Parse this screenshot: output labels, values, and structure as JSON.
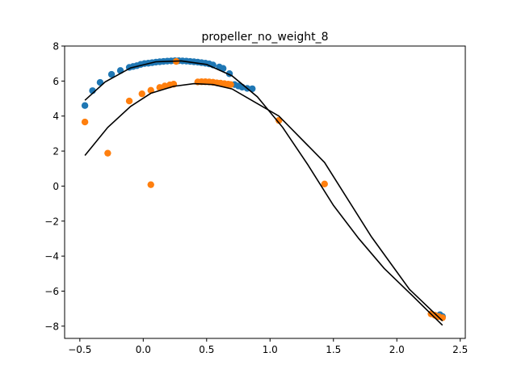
{
  "chart_data": {
    "type": "scatter",
    "title": "propeller_no_weight_8",
    "xlabel": "",
    "ylabel": "",
    "xlim": [
      -0.62,
      2.54
    ],
    "ylim": [
      -8.7,
      8.0
    ],
    "xticks": [
      -0.5,
      0.0,
      0.5,
      1.0,
      1.5,
      2.0,
      2.5
    ],
    "xtick_labels": [
      "−0.5",
      "0.0",
      "0.5",
      "1.0",
      "1.5",
      "2.0",
      "2.5"
    ],
    "yticks": [
      -8,
      -6,
      -4,
      -2,
      0,
      2,
      4,
      6,
      8
    ],
    "ytick_labels": [
      "−8",
      "−6",
      "−4",
      "−2",
      "0",
      "2",
      "4",
      "6",
      "8"
    ],
    "grid": false,
    "series": [
      {
        "color": "#1f77b4",
        "kind": "scatter",
        "points": [
          [
            -0.46,
            4.6
          ],
          [
            -0.4,
            5.45
          ],
          [
            -0.34,
            5.92
          ],
          [
            -0.25,
            6.38
          ],
          [
            -0.18,
            6.6
          ],
          [
            -0.11,
            6.78
          ],
          [
            -0.08,
            6.83
          ],
          [
            -0.05,
            6.88
          ],
          [
            -0.02,
            6.95
          ],
          [
            0.01,
            7.0
          ],
          [
            0.04,
            7.02
          ],
          [
            0.07,
            7.05
          ],
          [
            0.1,
            7.08
          ],
          [
            0.13,
            7.1
          ],
          [
            0.16,
            7.12
          ],
          [
            0.19,
            7.14
          ],
          [
            0.22,
            7.15
          ],
          [
            0.25,
            7.16
          ],
          [
            0.28,
            7.16
          ],
          [
            0.31,
            7.15
          ],
          [
            0.34,
            7.14
          ],
          [
            0.37,
            7.12
          ],
          [
            0.4,
            7.1
          ],
          [
            0.43,
            7.08
          ],
          [
            0.46,
            7.05
          ],
          [
            0.49,
            7.02
          ],
          [
            0.52,
            6.98
          ],
          [
            0.55,
            6.92
          ],
          [
            0.6,
            6.8
          ],
          [
            0.63,
            6.72
          ],
          [
            0.68,
            6.42
          ],
          [
            0.72,
            5.8
          ],
          [
            0.75,
            5.72
          ],
          [
            0.78,
            5.65
          ],
          [
            0.82,
            5.58
          ],
          [
            0.86,
            5.56
          ],
          [
            2.34,
            -7.35
          ],
          [
            2.36,
            -7.45
          ]
        ]
      },
      {
        "color": "#ff7f0e",
        "kind": "scatter",
        "points": [
          [
            -0.46,
            3.66
          ],
          [
            -0.28,
            1.88
          ],
          [
            -0.11,
            4.86
          ],
          [
            -0.01,
            5.27
          ],
          [
            0.06,
            0.08
          ],
          [
            0.06,
            5.47
          ],
          [
            0.13,
            5.63
          ],
          [
            0.17,
            5.72
          ],
          [
            0.21,
            5.78
          ],
          [
            0.24,
            5.82
          ],
          [
            0.26,
            7.12
          ],
          [
            0.43,
            5.95
          ],
          [
            0.46,
            5.96
          ],
          [
            0.49,
            5.96
          ],
          [
            0.52,
            5.95
          ],
          [
            0.55,
            5.93
          ],
          [
            0.58,
            5.9
          ],
          [
            0.61,
            5.88
          ],
          [
            0.64,
            5.85
          ],
          [
            0.67,
            5.82
          ],
          [
            0.69,
            5.8
          ],
          [
            1.07,
            3.75
          ],
          [
            1.43,
            0.12
          ],
          [
            2.27,
            -7.3
          ],
          [
            2.3,
            -7.38
          ],
          [
            2.33,
            -7.45
          ],
          [
            2.36,
            -7.52
          ]
        ]
      },
      {
        "color": "#000000",
        "kind": "line",
        "points": [
          [
            -0.46,
            4.9
          ],
          [
            -0.3,
            5.95
          ],
          [
            -0.1,
            6.75
          ],
          [
            0.1,
            7.1
          ],
          [
            0.3,
            7.15
          ],
          [
            0.5,
            6.95
          ],
          [
            0.7,
            6.3
          ],
          [
            0.9,
            5.1
          ],
          [
            1.1,
            3.35
          ],
          [
            1.3,
            1.2
          ],
          [
            1.5,
            -1.1
          ],
          [
            1.7,
            -3.0
          ],
          [
            1.9,
            -4.7
          ],
          [
            2.1,
            -6.1
          ],
          [
            2.36,
            -7.95
          ]
        ]
      },
      {
        "color": "#000000",
        "kind": "line",
        "points": [
          [
            -0.46,
            1.75
          ],
          [
            -0.28,
            3.35
          ],
          [
            -0.1,
            4.55
          ],
          [
            0.06,
            5.3
          ],
          [
            0.24,
            5.7
          ],
          [
            0.4,
            5.85
          ],
          [
            0.55,
            5.8
          ],
          [
            0.7,
            5.55
          ],
          [
            1.07,
            4.0
          ],
          [
            1.43,
            1.35
          ],
          [
            1.8,
            -2.9
          ],
          [
            2.1,
            -5.9
          ],
          [
            2.36,
            -7.7
          ]
        ]
      }
    ]
  }
}
